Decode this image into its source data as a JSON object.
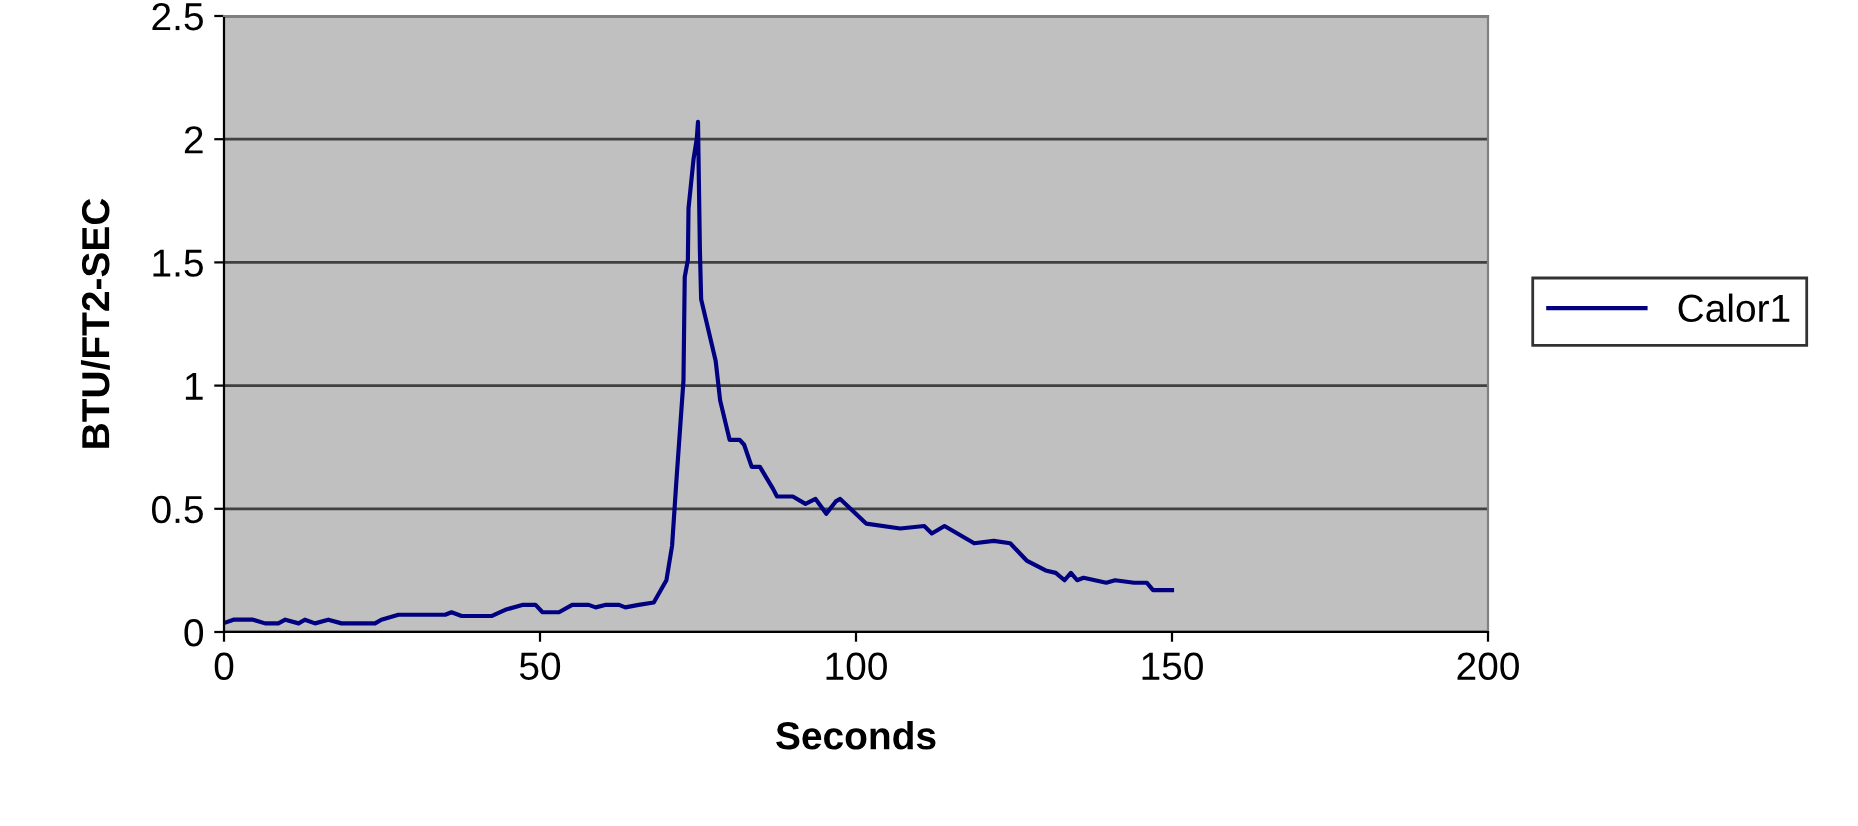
{
  "chart_data": {
    "type": "line",
    "xlabel": "Seconds",
    "ylabel": "BTU/FT2-SEC",
    "xlim": [
      0,
      200
    ],
    "xticks": [
      0,
      50,
      100,
      150,
      200
    ],
    "ylim": [
      0,
      2.5
    ],
    "yticks": [
      0,
      0.5,
      1,
      1.5,
      2,
      2.5
    ],
    "grid": "y",
    "legend": "right",
    "marker": "none",
    "line_style": "solid",
    "series": [
      {
        "name": "Calor1",
        "color": "#000080",
        "x": [
          0.4,
          1.5,
          4.6,
          6.5,
          8.6,
          9.7,
          11.8,
          12.8,
          14.4,
          16.5,
          18.6,
          23.9,
          24.9,
          27.6,
          35,
          36,
          37.6,
          42.4,
          44.5,
          47.2,
          49.3,
          50.4,
          53,
          55.1,
          57.7,
          58.8,
          60.3,
          62.5,
          63.5,
          65.6,
          68,
          70,
          70.9,
          71.6,
          72.7,
          72.9,
          73.4,
          73.5,
          74.3,
          74.8,
          75,
          75.3,
          75.5,
          77.8,
          78.5,
          80,
          81.6,
          82.3,
          83.5,
          84.8,
          86.9,
          87.5,
          90,
          92,
          93.6,
          95.3,
          96.8,
          97.5,
          101.6,
          107,
          110.8,
          112,
          114,
          118.7,
          121.8,
          124.4,
          127,
          130,
          131.6,
          133,
          134,
          135,
          136,
          139.6,
          141,
          144,
          146,
          147,
          150
        ],
        "values": [
          0.04,
          0.05,
          0.05,
          0.035,
          0.035,
          0.05,
          0.035,
          0.05,
          0.035,
          0.05,
          0.035,
          0.035,
          0.05,
          0.07,
          0.07,
          0.08,
          0.065,
          0.065,
          0.09,
          0.11,
          0.11,
          0.08,
          0.08,
          0.11,
          0.11,
          0.1,
          0.11,
          0.11,
          0.1,
          0.11,
          0.12,
          0.21,
          0.35,
          0.62,
          1.02,
          1.44,
          1.51,
          1.72,
          1.92,
          2.0,
          2.07,
          1.55,
          1.35,
          1.1,
          0.94,
          0.78,
          0.78,
          0.76,
          0.67,
          0.67,
          0.58,
          0.55,
          0.55,
          0.52,
          0.54,
          0.48,
          0.53,
          0.54,
          0.44,
          0.42,
          0.43,
          0.4,
          0.43,
          0.36,
          0.37,
          0.36,
          0.29,
          0.25,
          0.24,
          0.21,
          0.24,
          0.21,
          0.22,
          0.2,
          0.21,
          0.2,
          0.2,
          0.17,
          0.17
        ]
      }
    ]
  }
}
